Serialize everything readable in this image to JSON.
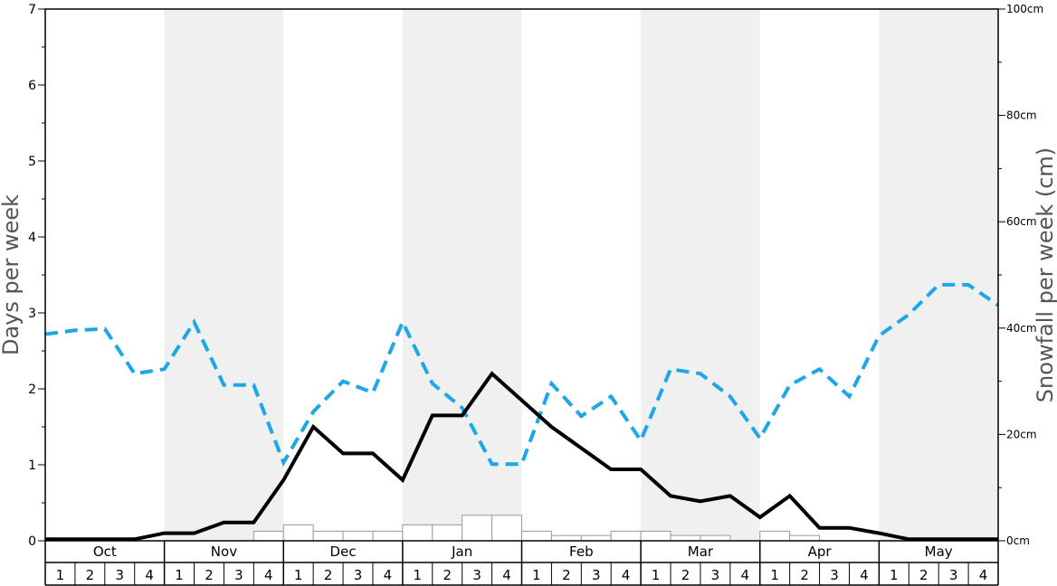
{
  "chart_data": {
    "type": "line",
    "y_left_label": "Days per week",
    "y_right_label": "Snowfall per week (cm)",
    "y_left_ticks": [
      "0",
      "1",
      "2",
      "3",
      "4",
      "5",
      "6",
      "7"
    ],
    "y_right_ticks": [
      "0cm",
      "20cm",
      "40cm",
      "60cm",
      "80cm",
      "100cm"
    ],
    "ylim_left": [
      0,
      7
    ],
    "ylim_right": [
      0,
      100
    ],
    "months": [
      "Oct",
      "Nov",
      "Dec",
      "Jan",
      "Feb",
      "Mar",
      "Apr",
      "May"
    ],
    "weeks": [
      "1",
      "2",
      "3",
      "4"
    ],
    "series": [
      {
        "axis": "right",
        "style": "bar",
        "color": "#ffffff",
        "values": [
          0,
          0,
          0,
          0,
          0,
          0,
          0,
          1.8,
          3.0,
          1.8,
          1.8,
          1.8,
          3.0,
          3.0,
          4.8,
          4.8,
          1.8,
          1.0,
          1.0,
          1.8,
          1.8,
          1.0,
          1.0,
          0,
          1.8,
          1.0,
          0,
          0,
          0,
          0,
          0,
          0
        ]
      },
      {
        "axis": "left",
        "style": "dashed",
        "color": "#1ea7e8",
        "values": [
          2.72,
          2.77,
          2.79,
          2.2,
          2.26,
          2.88,
          2.05,
          2.05,
          1.03,
          1.7,
          2.1,
          1.95,
          2.88,
          2.07,
          1.75,
          1.01,
          1.01,
          2.07,
          1.64,
          1.9,
          1.32,
          2.26,
          2.2,
          1.9,
          1.35,
          2.05,
          2.26,
          1.9,
          2.7,
          2.98,
          3.37,
          3.37,
          3.1
        ]
      },
      {
        "axis": "left",
        "style": "solid",
        "color": "#000000",
        "values": [
          0.02,
          0.02,
          0.02,
          0.02,
          0.1,
          0.1,
          0.24,
          0.24,
          0.8,
          1.5,
          1.15,
          1.15,
          0.8,
          1.65,
          1.65,
          2.2,
          1.85,
          1.5,
          1.22,
          0.94,
          0.94,
          0.59,
          0.52,
          0.59,
          0.31,
          0.59,
          0.17,
          0.17,
          0.1,
          0.02,
          0.02,
          0.02,
          0.02
        ]
      }
    ],
    "grid": false
  }
}
